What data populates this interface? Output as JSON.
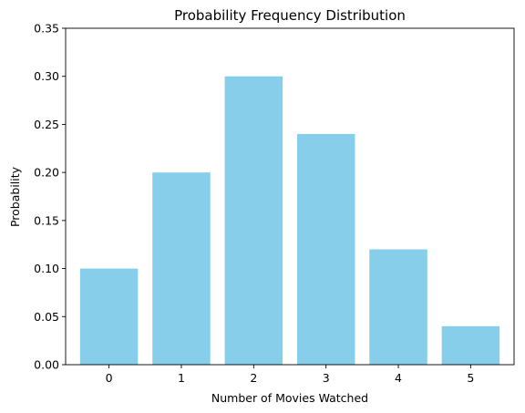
{
  "chart_data": {
    "type": "bar",
    "title": "Probability Frequency Distribution",
    "xlabel": "Number of Movies Watched",
    "ylabel": "Probability",
    "categories": [
      "0",
      "1",
      "2",
      "3",
      "4",
      "5"
    ],
    "values": [
      0.1,
      0.2,
      0.3,
      0.24,
      0.12,
      0.04
    ],
    "ylim": [
      0,
      0.35
    ],
    "yticks": [
      "0.00",
      "0.05",
      "0.10",
      "0.15",
      "0.20",
      "0.25",
      "0.30",
      "0.35"
    ],
    "bar_color": "#87CEEB",
    "grid": false,
    "legend": "none"
  }
}
